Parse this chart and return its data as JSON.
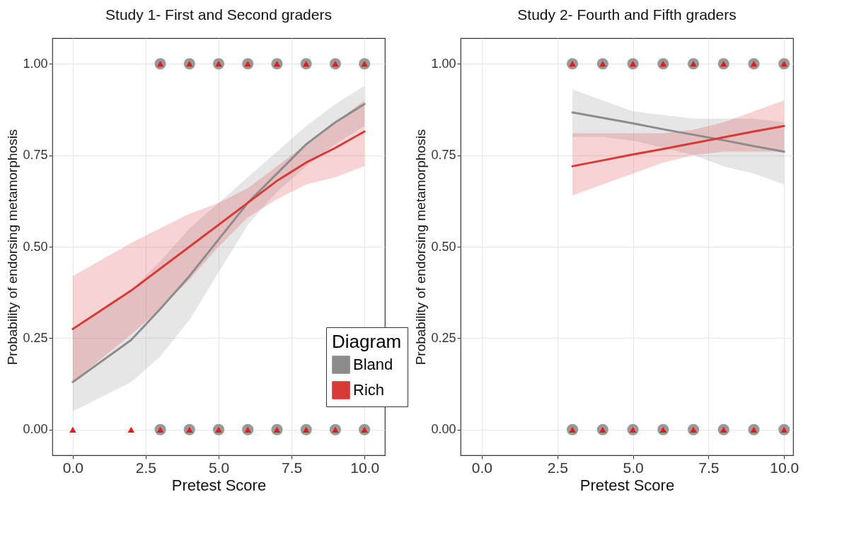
{
  "chart_data": [
    {
      "type": "line",
      "title": "Study 1- First and Second graders",
      "xlabel": "Pretest Score",
      "ylabel": "Probability of endorsing metamorphosis",
      "xlim": [
        -0.7,
        10.7
      ],
      "ylim": [
        -0.07,
        1.07
      ],
      "xticks": [
        {
          "value": 0,
          "label": "0.0"
        },
        {
          "value": 2.5,
          "label": "2.5"
        },
        {
          "value": 5,
          "label": "5.0"
        },
        {
          "value": 7.5,
          "label": "7.5"
        },
        {
          "value": 10,
          "label": "10.0"
        }
      ],
      "yticks": [
        {
          "value": 0,
          "label": "0.00"
        },
        {
          "value": 0.25,
          "label": "0.25"
        },
        {
          "value": 0.5,
          "label": "0.50"
        },
        {
          "value": 0.75,
          "label": "0.75"
        },
        {
          "value": 1,
          "label": "1.00"
        }
      ],
      "grid": true,
      "legend": "bottom right",
      "legend_title": "Diagram",
      "series": [
        {
          "type": "scatter",
          "marker": "circle",
          "color": "#999999",
          "x": [
            3,
            4,
            5,
            6,
            7,
            8,
            9,
            10,
            3,
            4,
            5,
            6,
            7,
            8,
            9,
            10
          ],
          "values": [
            1,
            1,
            1,
            1,
            1,
            1,
            1,
            1,
            0,
            0,
            0,
            0,
            0,
            0,
            0,
            0
          ]
        },
        {
          "type": "scatter",
          "marker": "triangle",
          "color": "#e41a1c",
          "x": [
            3,
            4,
            5,
            6,
            7,
            8,
            9,
            10,
            0,
            2,
            3,
            4,
            5,
            6,
            7,
            8,
            9,
            10
          ],
          "values": [
            1,
            1,
            1,
            1,
            1,
            1,
            1,
            1,
            0,
            0,
            0,
            0,
            0,
            0,
            0,
            0,
            0,
            0
          ]
        },
        {
          "name": "Bland",
          "color": "#8c8c8c",
          "x": [
            0,
            2,
            3,
            4,
            5,
            6,
            7,
            8,
            9,
            10
          ],
          "values": [
            0.13,
            0.245,
            0.33,
            0.42,
            0.52,
            0.62,
            0.7,
            0.78,
            0.84,
            0.89
          ],
          "lower": [
            0.05,
            0.13,
            0.2,
            0.3,
            0.43,
            0.56,
            0.65,
            0.72,
            0.78,
            0.83
          ],
          "upper": [
            0.27,
            0.38,
            0.46,
            0.55,
            0.62,
            0.69,
            0.76,
            0.83,
            0.89,
            0.94
          ]
        },
        {
          "name": "Rich",
          "color": "#d93a36",
          "x": [
            0,
            2,
            3,
            4,
            5,
            6,
            7,
            8,
            9,
            10
          ],
          "values": [
            0.275,
            0.38,
            0.44,
            0.5,
            0.56,
            0.62,
            0.68,
            0.73,
            0.77,
            0.815
          ],
          "lower": [
            0.13,
            0.26,
            0.33,
            0.41,
            0.5,
            0.58,
            0.63,
            0.67,
            0.69,
            0.72
          ],
          "upper": [
            0.42,
            0.51,
            0.55,
            0.59,
            0.62,
            0.66,
            0.72,
            0.78,
            0.84,
            0.9
          ]
        }
      ]
    },
    {
      "type": "line",
      "title": "Study 2- Fourth and Fifth graders",
      "xlabel": "Pretest Score",
      "ylabel": "Probability of endorsing metamorphosis",
      "xlim": [
        -0.7,
        10.3
      ],
      "ylim": [
        -0.07,
        1.07
      ],
      "xticks": [
        {
          "value": 0,
          "label": "0.0"
        },
        {
          "value": 2.5,
          "label": "2.5"
        },
        {
          "value": 5,
          "label": "5.0"
        },
        {
          "value": 7.5,
          "label": "7.5"
        },
        {
          "value": 10,
          "label": "10.0"
        }
      ],
      "yticks": [
        {
          "value": 0,
          "label": "0.00"
        },
        {
          "value": 0.25,
          "label": "0.25"
        },
        {
          "value": 0.5,
          "label": "0.50"
        },
        {
          "value": 0.75,
          "label": "0.75"
        },
        {
          "value": 1,
          "label": "1.00"
        }
      ],
      "grid": true,
      "series": [
        {
          "type": "scatter",
          "marker": "circle",
          "color": "#999999",
          "x": [
            3,
            4,
            5,
            6,
            7,
            8,
            9,
            10,
            3,
            4,
            5,
            6,
            7,
            8,
            9,
            10
          ],
          "values": [
            1,
            1,
            1,
            1,
            1,
            1,
            1,
            1,
            0,
            0,
            0,
            0,
            0,
            0,
            0,
            0
          ]
        },
        {
          "type": "scatter",
          "marker": "triangle",
          "color": "#e41a1c",
          "x": [
            3,
            4,
            5,
            6,
            7,
            8,
            9,
            10,
            3,
            4,
            5,
            6,
            7,
            8,
            9,
            10
          ],
          "values": [
            1,
            1,
            1,
            1,
            1,
            1,
            1,
            1,
            0,
            0,
            0,
            0,
            0,
            0,
            0,
            0
          ]
        },
        {
          "name": "Bland",
          "color": "#8c8c8c",
          "x": [
            3,
            4,
            5,
            6,
            7,
            8,
            9,
            10
          ],
          "values": [
            0.867,
            0.852,
            0.837,
            0.821,
            0.806,
            0.791,
            0.775,
            0.76
          ],
          "lower": [
            0.8,
            0.8,
            0.79,
            0.77,
            0.75,
            0.72,
            0.7,
            0.67
          ],
          "upper": [
            0.93,
            0.9,
            0.87,
            0.86,
            0.85,
            0.85,
            0.85,
            0.84
          ]
        },
        {
          "name": "Rich",
          "color": "#d93a36",
          "x": [
            3,
            4,
            5,
            6,
            7,
            8,
            9,
            10
          ],
          "values": [
            0.72,
            0.736,
            0.752,
            0.767,
            0.783,
            0.799,
            0.815,
            0.83
          ],
          "lower": [
            0.64,
            0.67,
            0.7,
            0.73,
            0.75,
            0.76,
            0.76,
            0.76
          ],
          "upper": [
            0.81,
            0.81,
            0.81,
            0.81,
            0.82,
            0.84,
            0.87,
            0.9
          ]
        }
      ]
    }
  ]
}
